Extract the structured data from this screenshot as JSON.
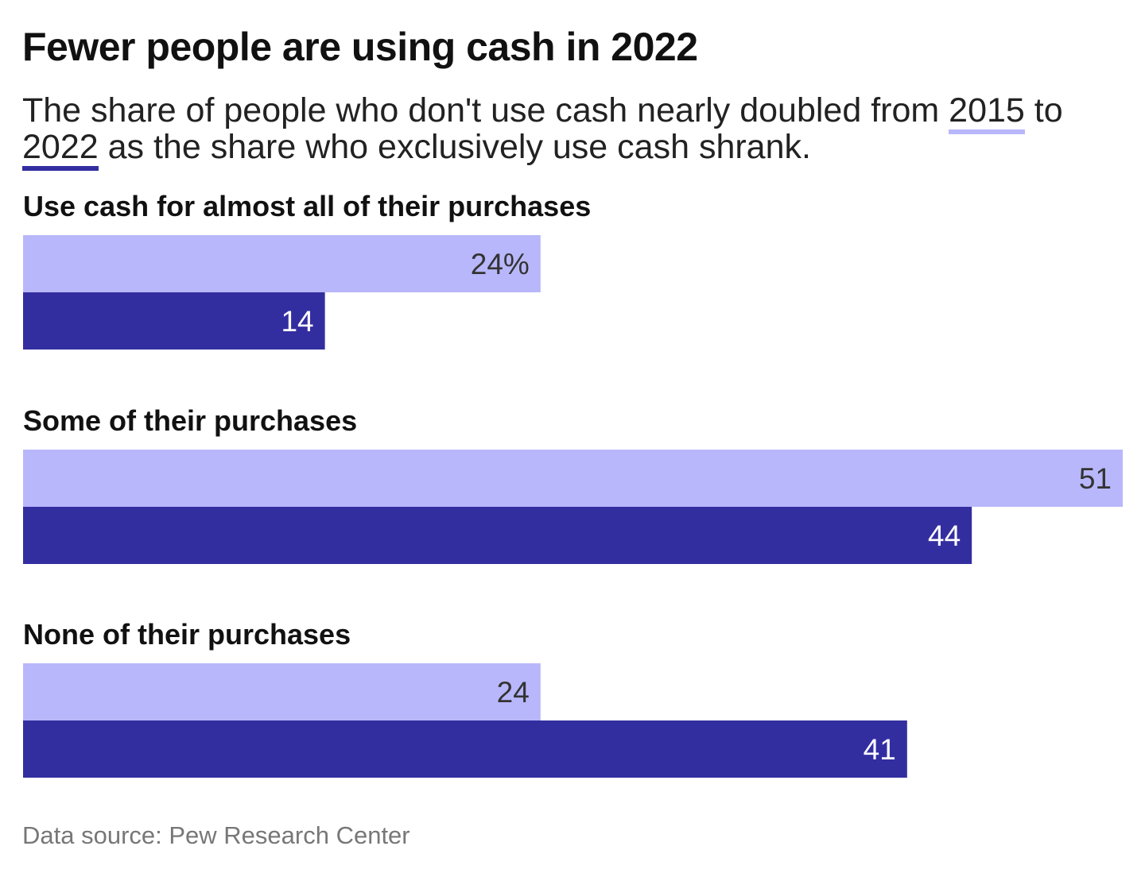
{
  "title": "Fewer people are using cash in 2022",
  "subtitle": {
    "part1": "The share of people who don't use cash nearly doubled from ",
    "year1": "2015",
    "part2": " to ",
    "year2": "2022",
    "part3": " as the share who exclusively use cash shrank."
  },
  "source": "Data source: Pew Research Center",
  "colors": {
    "2015": "#b9b7fb",
    "2022": "#332ea0"
  },
  "chart_data": {
    "type": "bar",
    "orientation": "horizontal",
    "categories": [
      "Use cash for almost all of their purchases",
      "Some of their purchases",
      "None of their purchases"
    ],
    "series": [
      {
        "name": "2015",
        "values": [
          24,
          51,
          24
        ],
        "labels": [
          "24%",
          "51",
          "24"
        ]
      },
      {
        "name": "2022",
        "values": [
          14,
          44,
          41
        ],
        "labels": [
          "14",
          "44",
          "41"
        ]
      }
    ],
    "xlim": [
      0,
      51
    ],
    "grid": false
  }
}
